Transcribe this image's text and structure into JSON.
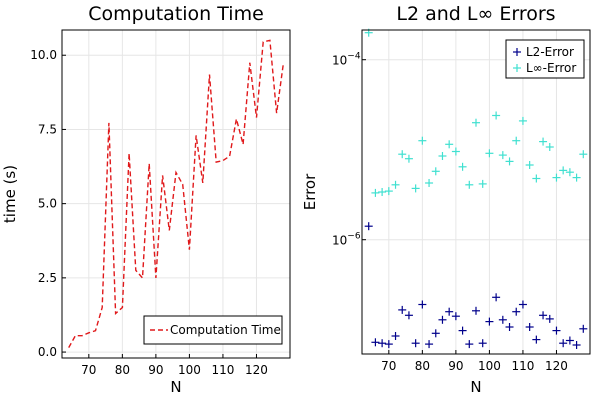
{
  "chart_data": [
    {
      "type": "line",
      "title": "Computation Time",
      "xlabel": "N",
      "ylabel": "time (s)",
      "xlim": [
        62,
        130
      ],
      "ylim": [
        -0.2,
        10.85
      ],
      "xticks": [
        70,
        80,
        90,
        100,
        110,
        120
      ],
      "yticks": [
        0.0,
        2.5,
        5.0,
        7.5,
        10.0
      ],
      "ytick_labels": [
        "0.0",
        "2.5",
        "5.0",
        "7.5",
        "10.0"
      ],
      "grid": true,
      "legend_position": "bottom-right",
      "line_style": "dashed",
      "series": [
        {
          "name": "Computation Time",
          "color": "#e0191b",
          "x": [
            64,
            66,
            68,
            70,
            72,
            74,
            76,
            78,
            80,
            82,
            84,
            86,
            88,
            90,
            92,
            94,
            96,
            98,
            100,
            102,
            104,
            106,
            108,
            110,
            112,
            114,
            116,
            118,
            120,
            122,
            124,
            126,
            128
          ],
          "y": [
            0.15,
            0.55,
            0.55,
            0.65,
            0.72,
            1.5,
            7.72,
            1.3,
            1.5,
            6.7,
            2.75,
            2.5,
            6.35,
            2.5,
            5.95,
            4.1,
            6.05,
            5.65,
            3.45,
            7.3,
            5.7,
            9.35,
            6.4,
            6.45,
            6.6,
            7.85,
            7.0,
            9.75,
            7.9,
            10.45,
            10.5,
            8.05,
            9.7
          ]
        }
      ]
    },
    {
      "type": "scatter",
      "title": "L2 and L∞ Errors",
      "xlabel": "N",
      "ylabel": "Error",
      "xlim": [
        62,
        130
      ],
      "ylog": true,
      "ylim_log10": [
        -7.27,
        -3.67
      ],
      "xticks": [
        60,
        70,
        80,
        90,
        100,
        110,
        120
      ],
      "yticks_log10": [
        -6,
        -4
      ],
      "ytick_labels": [
        {
          "base": "10",
          "exp": "−6"
        },
        {
          "base": "10",
          "exp": "−4"
        }
      ],
      "grid": true,
      "legend_position": "top-right",
      "marker": "+",
      "series": [
        {
          "name": "L2-Error",
          "color": "#00008b",
          "x": [
            64,
            66,
            68,
            70,
            72,
            74,
            76,
            78,
            80,
            82,
            84,
            86,
            88,
            90,
            92,
            94,
            96,
            98,
            100,
            102,
            104,
            106,
            108,
            110,
            112,
            114,
            116,
            118,
            120,
            122,
            124,
            126,
            128
          ],
          "log10_y": [
            -5.85,
            -7.14,
            -7.15,
            -7.16,
            -7.07,
            -6.78,
            -6.84,
            -7.15,
            -6.72,
            -7.16,
            -7.04,
            -6.89,
            -6.8,
            -6.85,
            -7.01,
            -7.16,
            -6.79,
            -7.15,
            -6.91,
            -6.64,
            -6.89,
            -6.97,
            -6.8,
            -6.72,
            -6.97,
            -7.11,
            -6.84,
            -6.88,
            -7.01,
            -7.15,
            -7.12,
            -7.17,
            -6.99
          ]
        },
        {
          "name": "L∞-Error",
          "color": "#40e0d0",
          "x": [
            64,
            66,
            68,
            70,
            72,
            74,
            76,
            78,
            80,
            82,
            84,
            86,
            88,
            90,
            92,
            94,
            96,
            98,
            100,
            102,
            104,
            106,
            108,
            110,
            112,
            114,
            116,
            118,
            120,
            122,
            124,
            126,
            128
          ],
          "log10_y": [
            -3.7,
            -5.48,
            -5.47,
            -5.46,
            -5.39,
            -5.05,
            -5.1,
            -5.43,
            -4.9,
            -5.37,
            -5.24,
            -5.07,
            -4.94,
            -5.02,
            -5.19,
            -5.39,
            -4.7,
            -5.38,
            -5.04,
            -4.62,
            -5.06,
            -5.13,
            -4.9,
            -4.68,
            -5.17,
            -5.32,
            -4.91,
            -4.97,
            -5.31,
            -5.23,
            -5.25,
            -5.31,
            -5.05
          ]
        }
      ]
    }
  ]
}
